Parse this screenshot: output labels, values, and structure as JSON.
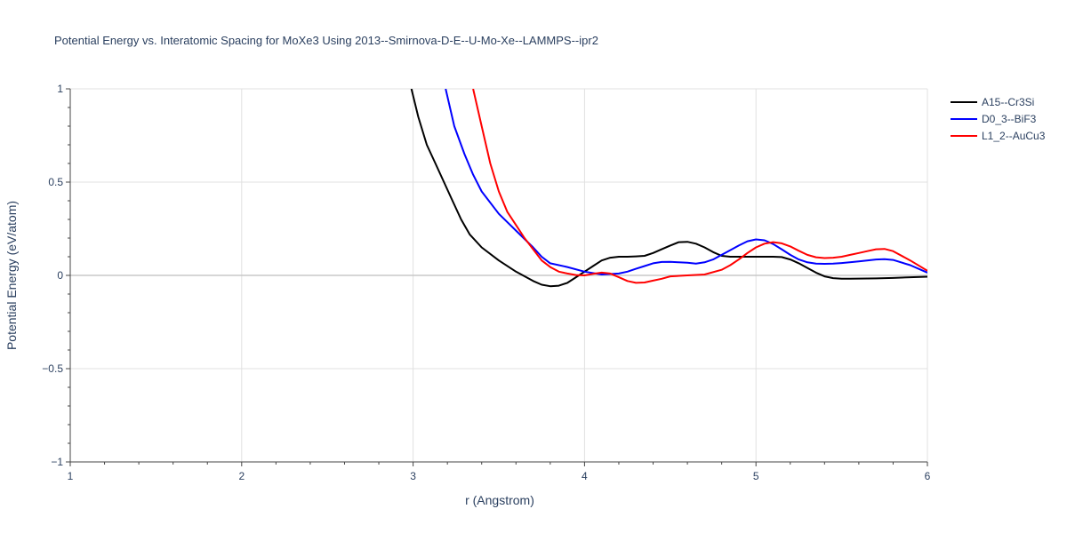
{
  "chart_data": {
    "type": "line",
    "title": "Potential Energy vs. Interatomic Spacing for MoXe3 Using 2013--Smirnova-D-E--U-Mo-Xe--LAMMPS--ipr2",
    "xlabel": "r (Angstrom)",
    "ylabel": "Potential Energy (eV/atom)",
    "xlim": [
      1,
      6
    ],
    "ylim": [
      -1,
      1
    ],
    "xticks": [
      1,
      2,
      3,
      4,
      5,
      6
    ],
    "xtick_labels": [
      "1",
      "2",
      "3",
      "4",
      "5",
      "6"
    ],
    "yticks": [
      -1,
      -0.5,
      0,
      0.5,
      1
    ],
    "ytick_labels": [
      "−1",
      "−0.5",
      "0",
      "0.5",
      "1"
    ],
    "grid": true,
    "legend_position": "top-right outside",
    "series": [
      {
        "name": "A15--Cr3Si",
        "color": "#000000",
        "x": [
          2.99,
          3.03,
          3.08,
          3.13,
          3.18,
          3.23,
          3.28,
          3.33,
          3.4,
          3.5,
          3.6,
          3.7,
          3.75,
          3.8,
          3.85,
          3.9,
          3.95,
          4.0,
          4.05,
          4.1,
          4.15,
          4.2,
          4.25,
          4.3,
          4.35,
          4.4,
          4.45,
          4.5,
          4.55,
          4.6,
          4.65,
          4.7,
          4.75,
          4.8,
          4.85,
          4.9,
          4.95,
          5.0,
          5.05,
          5.1,
          5.15,
          5.2,
          5.25,
          5.3,
          5.35,
          5.4,
          5.45,
          5.5,
          5.55,
          5.6,
          5.7,
          5.8,
          5.9,
          6.0
        ],
        "y": [
          1.0,
          0.85,
          0.7,
          0.6,
          0.5,
          0.4,
          0.3,
          0.22,
          0.15,
          0.08,
          0.02,
          -0.03,
          -0.05,
          -0.058,
          -0.055,
          -0.04,
          -0.01,
          0.02,
          0.05,
          0.08,
          0.095,
          0.1,
          0.1,
          0.102,
          0.105,
          0.12,
          0.14,
          0.16,
          0.178,
          0.18,
          0.17,
          0.15,
          0.125,
          0.105,
          0.1,
          0.1,
          0.1,
          0.1,
          0.1,
          0.1,
          0.098,
          0.085,
          0.065,
          0.04,
          0.015,
          -0.005,
          -0.015,
          -0.018,
          -0.018,
          -0.017,
          -0.016,
          -0.014,
          -0.01,
          -0.007
        ]
      },
      {
        "name": "D0_3--BiF3",
        "color": "#0000ff",
        "x": [
          3.19,
          3.24,
          3.3,
          3.35,
          3.4,
          3.5,
          3.6,
          3.7,
          3.75,
          3.8,
          3.9,
          4.0,
          4.1,
          4.2,
          4.25,
          4.3,
          4.35,
          4.4,
          4.45,
          4.5,
          4.55,
          4.6,
          4.65,
          4.7,
          4.75,
          4.8,
          4.85,
          4.9,
          4.95,
          5.0,
          5.05,
          5.1,
          5.15,
          5.2,
          5.25,
          5.3,
          5.35,
          5.4,
          5.45,
          5.5,
          5.6,
          5.7,
          5.75,
          5.8,
          5.9,
          6.0
        ],
        "y": [
          1.0,
          0.8,
          0.65,
          0.54,
          0.45,
          0.33,
          0.24,
          0.15,
          0.1,
          0.065,
          0.045,
          0.02,
          0.005,
          0.01,
          0.02,
          0.035,
          0.05,
          0.065,
          0.072,
          0.073,
          0.07,
          0.068,
          0.063,
          0.07,
          0.085,
          0.11,
          0.135,
          0.16,
          0.183,
          0.193,
          0.188,
          0.168,
          0.14,
          0.11,
          0.085,
          0.07,
          0.063,
          0.062,
          0.063,
          0.066,
          0.075,
          0.085,
          0.087,
          0.083,
          0.055,
          0.015
        ]
      },
      {
        "name": "L1_2--AuCu3",
        "color": "#ff0000",
        "x": [
          3.35,
          3.4,
          3.45,
          3.5,
          3.55,
          3.6,
          3.65,
          3.7,
          3.75,
          3.8,
          3.85,
          3.9,
          3.95,
          4.0,
          4.05,
          4.1,
          4.15,
          4.2,
          4.25,
          4.3,
          4.35,
          4.4,
          4.45,
          4.5,
          4.6,
          4.7,
          4.8,
          4.85,
          4.9,
          4.95,
          5.0,
          5.05,
          5.1,
          5.15,
          5.2,
          5.25,
          5.3,
          5.35,
          5.4,
          5.45,
          5.5,
          5.55,
          5.6,
          5.65,
          5.7,
          5.75,
          5.8,
          5.9,
          6.0
        ],
        "y": [
          1.0,
          0.8,
          0.6,
          0.45,
          0.34,
          0.27,
          0.2,
          0.14,
          0.08,
          0.045,
          0.02,
          0.01,
          0.002,
          0.0,
          0.008,
          0.015,
          0.01,
          -0.01,
          -0.03,
          -0.04,
          -0.038,
          -0.028,
          -0.018,
          -0.005,
          0.0,
          0.005,
          0.03,
          0.055,
          0.085,
          0.12,
          0.15,
          0.17,
          0.178,
          0.172,
          0.155,
          0.132,
          0.11,
          0.097,
          0.093,
          0.095,
          0.1,
          0.11,
          0.12,
          0.13,
          0.14,
          0.142,
          0.13,
          0.08,
          0.025
        ]
      }
    ]
  }
}
